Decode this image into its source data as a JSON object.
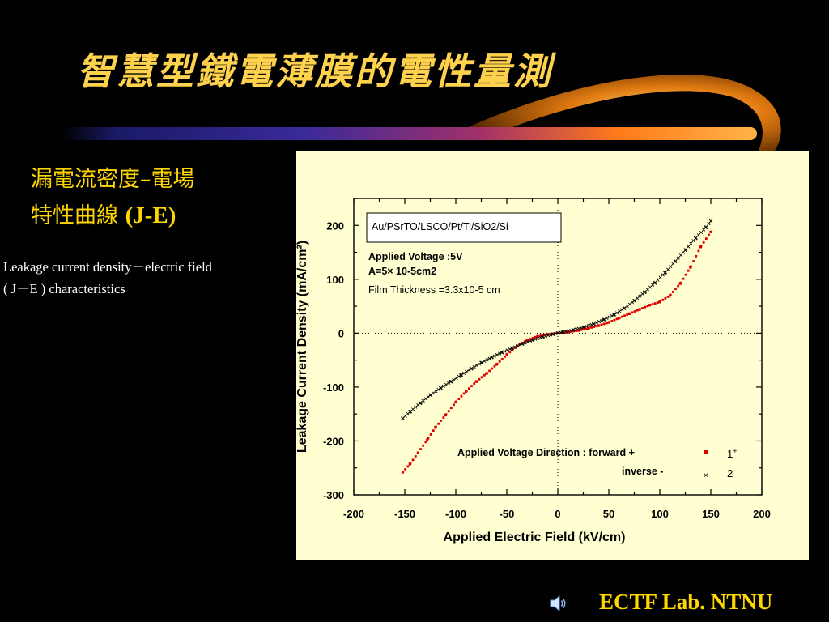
{
  "slide": {
    "title": "智慧型鐵電薄膜的電性量測",
    "subtitle_line1": "漏電流密度–電場",
    "subtitle_line2_zh": "特性曲線 ",
    "subtitle_line2_en": "(J-E)",
    "description_line1": "Leakage current density－electric field",
    "description_line2": "( J－E ) characteristics",
    "footer": "ECTF Lab. NTNU",
    "speaker_icon": "speaker-icon"
  },
  "colors": {
    "title": "#ffd24d",
    "subtitle": "#ffd700",
    "panel_bg": "#ffffd2",
    "forward_marker": "#e00000",
    "inverse_marker": "#000000"
  },
  "chart_data": {
    "type": "scatter",
    "xlabel": "Applied Electric Field (kV/cm)",
    "ylabel": "Leakage Current Density (mA/cm²)",
    "xlim": [
      -200,
      200
    ],
    "ylim": [
      -300,
      250
    ],
    "xticks": [
      -200,
      -150,
      -100,
      -50,
      0,
      50,
      100,
      150,
      200
    ],
    "yticks": [
      -300,
      -200,
      -100,
      0,
      100,
      200
    ],
    "grid": false,
    "annotations": {
      "sample": "Au/PSrTO/LSCO/Pt/Ti/SiO2/Si",
      "voltage": "Applied Voltage :5V",
      "area": "A=5× 10-5cm2",
      "thickness": "Film Thickness =3.3x10-5 cm",
      "direction": "Applied Voltage Direction : forward +",
      "inverse": "inverse  -"
    },
    "series": [
      {
        "name": "1+",
        "marker": "square",
        "color": "#e00000",
        "x": [
          -152,
          -145,
          -137,
          -128,
          -120,
          -110,
          -100,
          -90,
          -80,
          -70,
          -60,
          -50,
          -40,
          -30,
          -20,
          -10,
          0,
          10,
          20,
          30,
          40,
          50,
          60,
          70,
          80,
          90,
          100,
          110,
          120,
          130,
          140,
          150
        ],
        "y": [
          -258,
          -243,
          -222,
          -198,
          -175,
          -152,
          -128,
          -108,
          -90,
          -75,
          -58,
          -40,
          -24,
          -13,
          -6,
          -2,
          0,
          2,
          5,
          9,
          14,
          20,
          28,
          36,
          44,
          52,
          58,
          70,
          92,
          122,
          160,
          188
        ]
      },
      {
        "name": "2-",
        "marker": "x",
        "color": "#000000",
        "x": [
          -152,
          -145,
          -135,
          -125,
          -115,
          -105,
          -95,
          -85,
          -75,
          -65,
          -55,
          -45,
          -35,
          -25,
          -15,
          -5,
          0,
          5,
          15,
          25,
          35,
          45,
          55,
          65,
          75,
          85,
          95,
          105,
          115,
          125,
          135,
          145,
          150
        ],
        "y": [
          -158,
          -146,
          -130,
          -115,
          -102,
          -90,
          -78,
          -66,
          -55,
          -45,
          -36,
          -28,
          -20,
          -13,
          -7,
          -2,
          0,
          2,
          6,
          11,
          17,
          25,
          34,
          46,
          60,
          76,
          93,
          112,
          133,
          154,
          176,
          196,
          208
        ]
      }
    ],
    "legend": [
      {
        "label": "1",
        "sup": "+",
        "series": "1+"
      },
      {
        "label": "2",
        "sup": "-",
        "series": "2-"
      }
    ]
  }
}
